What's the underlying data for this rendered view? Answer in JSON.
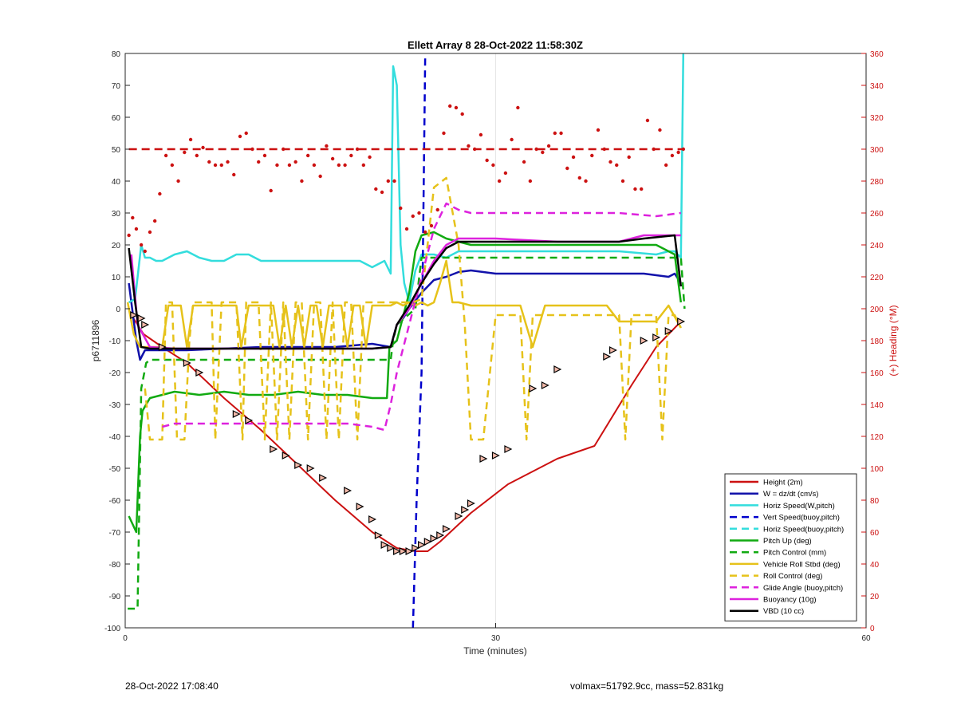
{
  "chart_data": {
    "type": "line",
    "title": "Ellett Array 8 28-Oct-2022 11:58:30Z",
    "xlabel": "Time (minutes)",
    "ylabel": "p6711896",
    "y2label": "(+) Heading (°M)",
    "xlim": [
      0,
      60
    ],
    "ylim": [
      -100,
      80
    ],
    "y2lim": [
      0,
      360
    ],
    "xticks": [
      "0",
      "30",
      "60"
    ],
    "yticks": [
      "80",
      "70",
      "60",
      "50",
      "40",
      "30",
      "20",
      "10",
      "0",
      "-10",
      "-20",
      "-30",
      "-40",
      "-50",
      "-60",
      "-70",
      "-80",
      "-90",
      "-100"
    ],
    "y2ticks": [
      "360",
      "340",
      "320",
      "300",
      "280",
      "260",
      "240",
      "220",
      "200",
      "180",
      "160",
      "140",
      "120",
      "100",
      "80",
      "60",
      "40",
      "20",
      "0"
    ],
    "grid": "x-only",
    "legend_position": "bottom-right",
    "colors": {
      "height": "#cc1111",
      "w": "#1111aa",
      "horiz_speed": "#33dddd",
      "vert_speed_buoy": "#0000cc",
      "horiz_speed_buoy": "#33dddd",
      "pitch_up": "#11aa11",
      "pitch_control": "#11aa11",
      "roll": "#e6c21a",
      "roll_control": "#e6c21a",
      "glide_angle": "#dd22dd",
      "buoyancy": "#dd22dd",
      "vbd": "#000000",
      "heading": "#cc1111",
      "marker": "#000000"
    },
    "series": [
      {
        "key": "height",
        "name": "Height (2m)",
        "style": "solid",
        "x": [
          0.5,
          1.5,
          3,
          5,
          8,
          11,
          14,
          17,
          20,
          22,
          23.5,
          24.5,
          25.5,
          28,
          31,
          35,
          38,
          41,
          43,
          45
        ],
        "y": [
          -2,
          -8,
          -12,
          -17,
          -28,
          -38,
          -49,
          -60,
          -70,
          -75,
          -76,
          -76,
          -73,
          -64,
          -55,
          -47,
          -43,
          -24,
          -12,
          -4
        ]
      },
      {
        "key": "w",
        "name": "W = dz/dt (cm/s)",
        "style": "solid",
        "x": [
          0.3,
          0.9,
          1.2,
          1.6,
          2,
          3,
          5,
          8,
          11,
          14,
          17,
          20,
          21.5,
          22,
          22.5,
          23,
          24,
          25,
          26,
          27,
          28,
          30,
          35,
          40,
          42,
          43,
          44,
          44.5,
          45
        ],
        "y": [
          8,
          -10,
          -16,
          -13,
          -13,
          -13,
          -13,
          -12.5,
          -12,
          -12,
          -12,
          -11,
          -12,
          -5,
          -3,
          0,
          5,
          9,
          10,
          11.5,
          12,
          11,
          11,
          11,
          11,
          10.5,
          10,
          11,
          8
        ]
      },
      {
        "key": "horiz_speed",
        "name": "Horiz Speed(W,pitch)",
        "style": "solid",
        "x": [
          0.3,
          0.8,
          1.3,
          1.6,
          2,
          2.5,
          3,
          4,
          5,
          6,
          7,
          8,
          9,
          10,
          11,
          12,
          14,
          16,
          18,
          19,
          20,
          21,
          21.5,
          21.7,
          22,
          22.3,
          22.6,
          23,
          23.5,
          24,
          25,
          26,
          27,
          28,
          30,
          35,
          40,
          43,
          44,
          44.5,
          45,
          45.2
        ],
        "y": [
          2,
          3,
          20,
          16,
          16,
          15,
          15,
          17,
          18,
          16,
          15,
          15,
          17,
          17,
          15,
          15,
          15,
          15,
          15,
          15,
          13,
          15,
          11,
          76,
          70,
          20,
          8,
          2,
          12,
          17,
          17,
          16,
          18,
          18,
          18,
          18,
          18,
          17,
          18,
          18,
          16,
          80
        ]
      },
      {
        "key": "vert_speed_buoy",
        "name": "Vert Speed(buoy,pitch)",
        "style": "dashed",
        "x": [
          23.3,
          23.6,
          24,
          24.3
        ],
        "y": [
          -100,
          -60,
          -20,
          80
        ]
      },
      {
        "key": "horiz_speed_buoy",
        "name": "Horiz Speed(buoy,pitch)",
        "style": "dashed",
        "x": [],
        "y": []
      },
      {
        "key": "pitch_up",
        "name": "Pitch Up (deg)",
        "style": "solid",
        "x": [
          0.3,
          0.9,
          1.2,
          1.4,
          1.7,
          2,
          3,
          4,
          6,
          8,
          10,
          12,
          14,
          16,
          18,
          20,
          21.2,
          21.4,
          22,
          23,
          23.5,
          24,
          25,
          26,
          27,
          28,
          30,
          35,
          40,
          43,
          44,
          44.5,
          45
        ],
        "y": [
          -65,
          -70,
          -40,
          -32,
          -30,
          -28,
          -27,
          -26,
          -27,
          -26,
          -27,
          -27,
          -26,
          -27,
          -27,
          -28,
          -28,
          -12,
          -10,
          5,
          18,
          23,
          24,
          22,
          21,
          20,
          20,
          20,
          20,
          20,
          18,
          17,
          2
        ]
      },
      {
        "key": "pitch_control",
        "name": "Pitch Control (mm)",
        "style": "dashed",
        "x": [
          0.2,
          1,
          1.3,
          1.7,
          2,
          4,
          8,
          12,
          16,
          19,
          20,
          21.5,
          21.7,
          22,
          23.5,
          24,
          25,
          26,
          28,
          30,
          35,
          40,
          43,
          45,
          45.3
        ],
        "y": [
          -94,
          -94,
          -25,
          -17,
          -16,
          -16,
          -16,
          -16,
          -16,
          -16,
          -16,
          -16,
          -10,
          -5,
          0,
          16,
          16,
          16,
          16,
          16,
          16,
          16,
          16,
          16,
          0
        ]
      },
      {
        "key": "roll",
        "name": "Vehicle Roll Stbd (deg)",
        "style": "solid",
        "x": [
          0.2,
          0.7,
          1.2,
          2,
          2.8,
          3,
          3.5,
          4,
          4.5,
          5,
          5.5,
          6,
          6.5,
          7,
          8,
          9,
          9.4,
          10,
          11,
          12,
          12.5,
          13,
          13.5,
          14,
          14.5,
          15,
          15.5,
          16,
          16.5,
          17,
          17.5,
          18,
          18.5,
          19,
          19.5,
          20,
          20.5,
          21,
          21.5,
          22,
          22.5,
          23,
          23.5,
          24,
          24.5,
          25,
          25.5,
          26,
          26.5,
          27,
          28,
          29,
          30,
          31,
          32,
          33,
          34,
          35,
          36,
          37,
          38,
          39,
          40,
          41,
          42,
          43,
          44,
          45
        ],
        "y": [
          2,
          -8,
          -12,
          -12,
          -12,
          -12,
          1,
          1,
          1,
          -12,
          1,
          1,
          1,
          1,
          1,
          1,
          -12,
          1,
          1,
          1,
          -12,
          1,
          -12,
          1,
          -12,
          1,
          1,
          -12,
          1,
          1,
          1,
          -12,
          1,
          1,
          -12,
          1,
          1,
          1,
          1,
          2,
          1,
          2,
          1,
          2,
          1,
          2,
          8,
          15,
          2,
          2,
          1,
          1,
          1,
          1,
          1,
          -12,
          1,
          1,
          1,
          1,
          1,
          1,
          -4,
          -4,
          -4,
          -4,
          1,
          -6
        ]
      },
      {
        "key": "roll_control",
        "name": "Roll Control (deg)",
        "style": "dashed",
        "x": [
          1.6,
          2,
          2.2,
          3,
          3.3,
          3.8,
          4.2,
          4.8,
          5.2,
          5.5,
          6,
          7,
          7.3,
          7.8,
          8.2,
          9,
          9.5,
          9.8,
          10.3,
          10.8,
          11.3,
          11.8,
          12.3,
          12.8,
          13.3,
          13.8,
          14.3,
          14.8,
          15.3,
          15.8,
          16.3,
          16.8,
          17.3,
          17.8,
          18.3,
          18.8,
          19.3,
          19.8,
          20.3,
          20.8,
          21.3,
          21.8,
          22.3,
          22.8,
          23.3,
          24,
          25,
          26,
          27,
          27.5,
          28,
          29,
          30,
          31,
          32,
          32.5,
          33,
          33.5,
          34,
          35,
          36,
          37,
          38,
          39,
          40,
          40.5,
          41,
          41.5,
          42,
          42.5,
          43,
          43.5,
          44,
          44.5,
          45
        ],
        "y": [
          -25,
          -41,
          -41,
          -41,
          2,
          2,
          -41,
          -41,
          -10,
          2,
          2,
          2,
          -41,
          2,
          2,
          2,
          -41,
          2,
          2,
          2,
          -41,
          2,
          -41,
          2,
          -41,
          2,
          2,
          -41,
          2,
          2,
          -41,
          2,
          -41,
          2,
          2,
          -41,
          2,
          2,
          2,
          2,
          2,
          2,
          2,
          2,
          2,
          3,
          38,
          41,
          20,
          -5,
          -41,
          -41,
          -2,
          -2,
          -2,
          -41,
          -2,
          -2,
          -2,
          -2,
          -2,
          -2,
          -2,
          -2,
          -2,
          -41,
          -2,
          -2,
          -2,
          -2,
          -2,
          -41,
          -2,
          -2,
          -6
        ]
      },
      {
        "key": "glide_angle",
        "name": "Glide Angle (buoy,pitch)",
        "style": "dashed",
        "x": [
          3,
          4,
          6,
          8,
          10,
          12,
          14,
          16,
          18,
          20,
          21,
          21.5,
          22,
          23,
          24,
          25,
          26,
          27,
          28,
          30,
          35,
          40,
          43,
          45
        ],
        "y": [
          -37,
          -36,
          -36,
          -36,
          -36,
          -36,
          -36,
          -36,
          -36,
          -37,
          -38,
          -30,
          -20,
          -5,
          10,
          25,
          33,
          31,
          30,
          30,
          30,
          30,
          29,
          30
        ]
      },
      {
        "key": "buoyancy",
        "name": "Buoyancy (10g)",
        "style": "solid",
        "x": [
          0.5,
          1,
          2,
          4,
          8,
          12,
          16,
          20,
          21.5,
          22,
          23,
          24,
          25,
          26,
          27,
          28,
          30,
          35,
          40,
          42,
          44,
          45
        ],
        "y": [
          17,
          -5,
          -12,
          -12.5,
          -12.5,
          -12.5,
          -12.5,
          -12.5,
          -12,
          -5,
          0,
          8,
          15,
          20,
          22,
          22,
          22,
          21,
          21,
          23,
          23,
          23
        ]
      },
      {
        "key": "vbd",
        "name": "VBD (10 cc)",
        "style": "solid",
        "x": [
          0.3,
          0.8,
          1.3,
          2,
          4,
          8,
          12,
          16,
          20,
          21.5,
          22,
          23,
          24,
          25,
          26,
          27,
          28,
          30,
          35,
          40,
          42,
          44.5,
          45
        ],
        "y": [
          19,
          2,
          -12,
          -12.5,
          -12.5,
          -12.5,
          -12.5,
          -12.5,
          -12.5,
          -12,
          -5,
          1,
          8,
          14,
          19,
          21,
          21,
          21,
          21,
          21,
          22,
          23,
          7
        ]
      }
    ],
    "heading": {
      "name": "(+) Heading (°M)",
      "style": "dots",
      "axis": "right",
      "reference_value": 300,
      "x": [
        0.3,
        0.6,
        0.9,
        1.3,
        1.6,
        2,
        2.4,
        2.8,
        3.3,
        3.8,
        4.3,
        4.8,
        5.3,
        5.8,
        6.3,
        6.8,
        7.3,
        7.8,
        8.3,
        8.8,
        9.3,
        9.8,
        10.3,
        10.8,
        11.3,
        11.8,
        12.3,
        12.8,
        13.3,
        13.8,
        14.3,
        14.8,
        15.3,
        15.8,
        16.3,
        16.8,
        17.3,
        17.8,
        18.3,
        18.8,
        19.3,
        19.8,
        20.3,
        20.8,
        21.3,
        21.8,
        22.3,
        22.8,
        23.3,
        23.8,
        24.3,
        24.8,
        25.3,
        25.8,
        26.3,
        26.8,
        27.3,
        27.8,
        28.3,
        28.8,
        29.3,
        29.8,
        30.3,
        30.8,
        31.3,
        31.8,
        32.3,
        32.8,
        33.3,
        33.8,
        34.3,
        34.8,
        35.3,
        35.8,
        36.3,
        36.8,
        37.3,
        37.8,
        38.3,
        38.8,
        39.3,
        39.8,
        40.3,
        40.8,
        41.3,
        41.8,
        42.3,
        42.8,
        43.3,
        43.8,
        44.3,
        44.8,
        45.2
      ],
      "y": [
        246,
        257,
        250,
        240,
        236,
        248,
        255,
        272,
        296,
        290,
        280,
        298,
        306,
        296,
        301,
        292,
        290,
        290,
        292,
        284,
        308,
        310,
        300,
        292,
        296,
        274,
        290,
        300,
        290,
        292,
        280,
        296,
        290,
        283,
        302,
        294,
        290,
        290,
        296,
        300,
        290,
        295,
        275,
        273,
        280,
        280,
        263,
        250,
        258,
        260,
        248,
        252,
        262,
        310,
        327,
        326,
        322,
        302,
        300,
        309,
        293,
        290,
        280,
        285,
        306,
        326,
        292,
        280,
        300,
        298,
        302,
        310,
        310,
        288,
        295,
        282,
        280,
        296,
        312,
        300,
        292,
        290,
        280,
        295,
        275,
        275,
        318,
        300,
        312,
        290,
        296,
        298,
        300
      ]
    },
    "markers": {
      "style": "triangles",
      "x": [
        0.7,
        1.3,
        1.6,
        3,
        5,
        6,
        9,
        10,
        12,
        13,
        14,
        15,
        16,
        18,
        19,
        20,
        20.5,
        21,
        21.5,
        22,
        22.5,
        23,
        23.5,
        24,
        24.5,
        25,
        25.5,
        26,
        27,
        27.5,
        28,
        29,
        30,
        31,
        33,
        34,
        35,
        39,
        39.5,
        42,
        43,
        44,
        45
      ],
      "y": [
        -2,
        -3,
        -5,
        -12,
        -17,
        -20,
        -33,
        -35,
        -44,
        -46,
        -49,
        -50,
        -53,
        -57,
        -62,
        -66,
        -71,
        -74,
        -75,
        -76,
        -76,
        -76,
        -75,
        -74,
        -73,
        -72,
        -71,
        -69,
        -65,
        -63,
        -61,
        -47,
        -46,
        -44,
        -25,
        -24,
        -19,
        -15,
        -13,
        -10,
        -9,
        -7,
        -4
      ]
    }
  },
  "footer": {
    "left": "28-Oct-2022 17:08:40",
    "right": "volmax=51792.9cc, mass=52.831kg"
  }
}
